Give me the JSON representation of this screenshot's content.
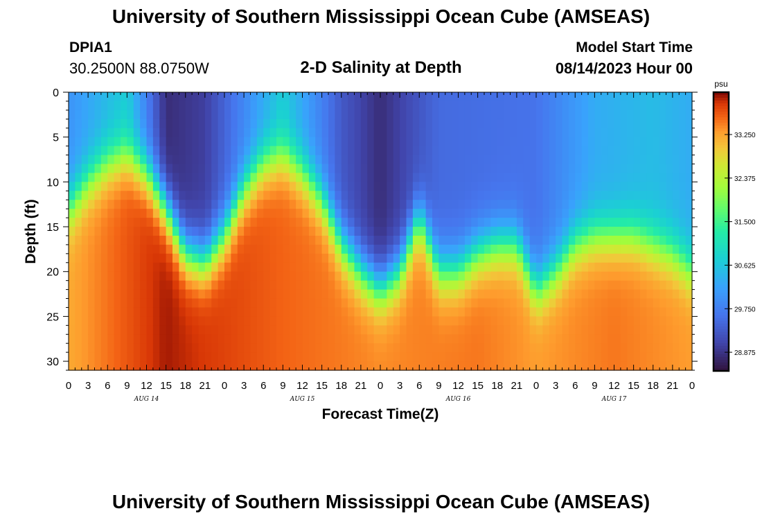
{
  "header": {
    "title": "University of Southern Mississippi Ocean Cube (AMSEAS)",
    "station_id": "DPIA1",
    "coordinates": "30.2500N  88.0750W",
    "plot_title": "2-D Salinity at Depth",
    "model_start_label": "Model Start Time",
    "model_start_value": "08/14/2023 Hour 00"
  },
  "footer": {
    "title": "University of Southern Mississippi Ocean Cube (AMSEAS)"
  },
  "chart_data": {
    "type": "heatmap",
    "title": "2-D Salinity at Depth",
    "xlabel": "Forecast Time(Z)",
    "ylabel": "Depth (ft)",
    "x_range_hours": [
      0,
      96
    ],
    "y_range_ft": [
      0,
      31
    ],
    "x_tick_step_hours": 3,
    "x_tick_labels": [
      "0",
      "3",
      "6",
      "9",
      "12",
      "15",
      "18",
      "21",
      "0",
      "3",
      "6",
      "9",
      "12",
      "15",
      "18",
      "21",
      "0",
      "3",
      "6",
      "9",
      "12",
      "15",
      "18",
      "21",
      "0",
      "3",
      "6",
      "9",
      "12",
      "15",
      "18",
      "21",
      "0"
    ],
    "date_labels": [
      {
        "label": "AUG 14",
        "hour": 12
      },
      {
        "label": "AUG 15",
        "hour": 36
      },
      {
        "label": "AUG 16",
        "hour": 60
      },
      {
        "label": "AUG 17",
        "hour": 84
      }
    ],
    "y_ticks": [
      0,
      5,
      10,
      15,
      20,
      25,
      30
    ],
    "colorbar": {
      "unit": "psu",
      "min": 28.5,
      "max": 34.1,
      "tick_values": [
        28.875,
        29.75,
        30.625,
        31.5,
        32.375,
        33.25
      ],
      "tick_labels": [
        "28.875",
        "29.750",
        "30.625",
        "31.500",
        "32.375",
        "33.250"
      ]
    },
    "halocline_depth_ft": [
      {
        "hour": 0,
        "depth": 13
      },
      {
        "hour": 3,
        "depth": 10
      },
      {
        "hour": 6,
        "depth": 8
      },
      {
        "hour": 9,
        "depth": 7
      },
      {
        "hour": 12,
        "depth": 9
      },
      {
        "hour": 15,
        "depth": 13
      },
      {
        "hour": 18,
        "depth": 18
      },
      {
        "hour": 21,
        "depth": 19
      },
      {
        "hour": 24,
        "depth": 16
      },
      {
        "hour": 27,
        "depth": 11
      },
      {
        "hour": 30,
        "depth": 8
      },
      {
        "hour": 33,
        "depth": 7
      },
      {
        "hour": 36,
        "depth": 9
      },
      {
        "hour": 39,
        "depth": 12
      },
      {
        "hour": 42,
        "depth": 17
      },
      {
        "hour": 45,
        "depth": 20
      },
      {
        "hour": 48,
        "depth": 22
      },
      {
        "hour": 51,
        "depth": 20
      },
      {
        "hour": 54,
        "depth": 14
      },
      {
        "hour": 57,
        "depth": 20
      },
      {
        "hour": 60,
        "depth": 20
      },
      {
        "hour": 63,
        "depth": 18
      },
      {
        "hour": 66,
        "depth": 17
      },
      {
        "hour": 69,
        "depth": 17
      },
      {
        "hour": 72,
        "depth": 22
      },
      {
        "hour": 75,
        "depth": 20
      },
      {
        "hour": 78,
        "depth": 17
      },
      {
        "hour": 81,
        "depth": 16
      },
      {
        "hour": 84,
        "depth": 16
      },
      {
        "hour": 87,
        "depth": 16
      },
      {
        "hour": 90,
        "depth": 17
      },
      {
        "hour": 93,
        "depth": 18
      },
      {
        "hour": 96,
        "depth": 20
      }
    ],
    "surface_salinity_psu": [
      {
        "hour": 0,
        "value": 30.0
      },
      {
        "hour": 9,
        "value": 30.7
      },
      {
        "hour": 15,
        "value": 28.8
      },
      {
        "hour": 21,
        "value": 29.0
      },
      {
        "hour": 33,
        "value": 30.7
      },
      {
        "hour": 42,
        "value": 29.3
      },
      {
        "hour": 48,
        "value": 28.8
      },
      {
        "hour": 57,
        "value": 29.5
      },
      {
        "hour": 72,
        "value": 29.6
      },
      {
        "hour": 81,
        "value": 30.3
      },
      {
        "hour": 90,
        "value": 30.5
      },
      {
        "hour": 96,
        "value": 30.3
      }
    ],
    "bottom_salinity_psu": [
      {
        "hour": 0,
        "value": 33.2
      },
      {
        "hour": 15,
        "value": 34.0
      },
      {
        "hour": 33,
        "value": 33.6
      },
      {
        "hour": 48,
        "value": 33.4
      },
      {
        "hour": 63,
        "value": 33.5
      },
      {
        "hour": 72,
        "value": 33.3
      },
      {
        "hour": 84,
        "value": 33.5
      },
      {
        "hour": 96,
        "value": 33.3
      }
    ]
  }
}
